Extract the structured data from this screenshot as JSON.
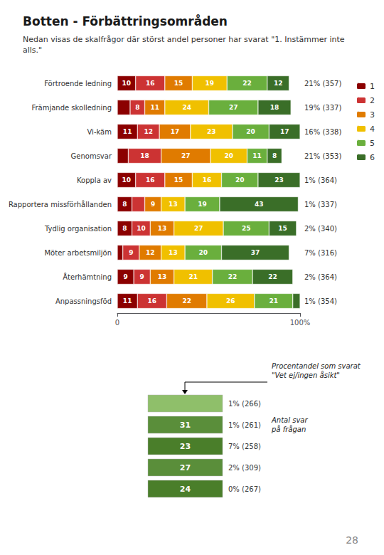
{
  "chart_data": [
    {
      "type": "bar",
      "title": "Botten - Förbättringsområden",
      "subtitle": "Nedan visas de skalfrågor där störst andel personer har svarat \"1. Instämmer inte\nalls.\"",
      "orientation": "horizontal",
      "stacked": true,
      "data_labels": true,
      "categories": [
        "Förtroende ledning",
        "Främjande skolledning",
        "Vi-käm",
        "Genomsvar",
        "Koppla av",
        "Rapportera missförhållanden",
        "Tydlig organisation",
        "Möter arbetsmiljön",
        "Återhämtning",
        "Anpassningsföd"
      ],
      "series": [
        {
          "name": "1",
          "color": "#8B0000",
          "values": [
            10,
            7,
            11,
            6,
            10,
            8,
            8,
            3,
            9,
            11
          ],
          "value_labels": [
            "10",
            null,
            "11",
            null,
            "10",
            "8",
            "8",
            null,
            "9",
            "11"
          ]
        },
        {
          "name": "2",
          "color": "#CC3333",
          "values": [
            16,
            8,
            12,
            18,
            16,
            7,
            10,
            9,
            9,
            16
          ],
          "value_labels": [
            "16",
            "8",
            "12",
            "18",
            "16",
            null,
            "10",
            "9",
            "9",
            "16"
          ]
        },
        {
          "name": "3",
          "color": "#E07B00",
          "values": [
            15,
            11,
            17,
            27,
            15,
            9,
            13,
            12,
            13,
            22
          ]
        },
        {
          "name": "4",
          "color": "#F0C000",
          "values": [
            19,
            24,
            23,
            20,
            16,
            13,
            27,
            13,
            21,
            26
          ]
        },
        {
          "name": "5",
          "color": "#6AAF3D",
          "values": [
            22,
            27,
            20,
            11,
            20,
            19,
            25,
            20,
            22,
            21
          ]
        },
        {
          "name": "6",
          "color": "#3A6E28",
          "values": [
            12,
            18,
            17,
            8,
            23,
            43,
            15,
            37,
            22,
            4
          ],
          "value_labels": [
            "12",
            "18",
            "17",
            "8",
            "23",
            "43",
            "15",
            "37",
            "22",
            null
          ]
        }
      ],
      "right_labels": [
        "21% (357)",
        "19% (337)",
        "16% (338)",
        "21% (353)",
        "1% (364)",
        "1% (337)",
        "2% (340)",
        "7% (316)",
        "2% (364)",
        "1% (354)"
      ],
      "xlim": [
        0,
        100
      ],
      "xticks": [
        0,
        {
          "value": 100,
          "label": "100%"
        }
      ],
      "grid": false,
      "legend": "right",
      "page_number": "28"
    },
    {
      "type": "table",
      "data_labels": true,
      "values": [
        null,
        31,
        23,
        27,
        24
      ],
      "labels": [
        "1% (266)",
        "1% (261)",
        "7% (258)",
        "2% (309)",
        "0% (267)"
      ],
      "colors": [
        "#8FBF6A",
        "#5A8E3A",
        "#4A7E2A",
        "#5A8E3A",
        "#4A7E2A"
      ],
      "annotations": [
        "Procentandel som svarat\n\"Vet ej/ingen åsikt\"",
        "Antal svar\npå frågan"
      ]
    }
  ]
}
